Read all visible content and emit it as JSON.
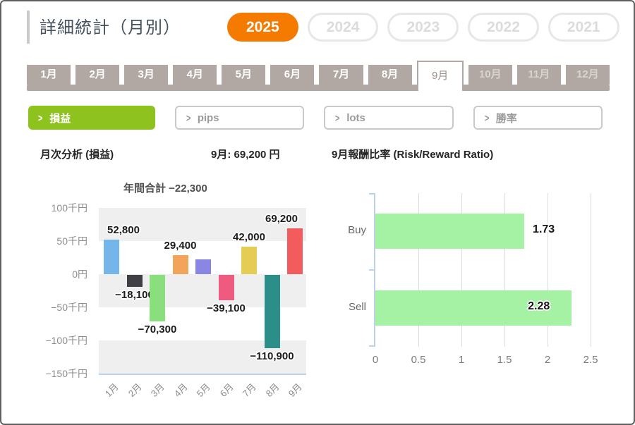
{
  "page": {
    "title": "詳細統計（月別）"
  },
  "year_tabs": {
    "items": [
      {
        "label": "2025",
        "active": true
      },
      {
        "label": "2024",
        "active": false
      },
      {
        "label": "2023",
        "active": false
      },
      {
        "label": "2022",
        "active": false
      },
      {
        "label": "2021",
        "active": false
      }
    ]
  },
  "month_tabs": {
    "items": [
      {
        "label": "1月",
        "state": "past"
      },
      {
        "label": "2月",
        "state": "past"
      },
      {
        "label": "3月",
        "state": "past"
      },
      {
        "label": "4月",
        "state": "past"
      },
      {
        "label": "5月",
        "state": "past"
      },
      {
        "label": "6月",
        "state": "past"
      },
      {
        "label": "7月",
        "state": "past"
      },
      {
        "label": "8月",
        "state": "past"
      },
      {
        "label": "9月",
        "state": "active"
      },
      {
        "label": "10月",
        "state": "future"
      },
      {
        "label": "11月",
        "state": "future"
      },
      {
        "label": "12月",
        "state": "future"
      }
    ]
  },
  "filters": {
    "arrow": ">",
    "items": [
      {
        "label": "損益",
        "active": true
      },
      {
        "label": "pips",
        "active": false
      },
      {
        "label": "lots",
        "active": false
      },
      {
        "label": "勝率",
        "active": false
      }
    ]
  },
  "sections": {
    "left_title": "月次分析 (損益)",
    "month_total": "9月: 69,200 円",
    "right_title": "9月報酬比率 (Risk/Reward Ratio)"
  },
  "colors": {
    "accent_orange": "#f57a00",
    "active_filter_green": "#8ec21e",
    "tab_taupe": "#b1a8a3",
    "band_gray": "#efefef",
    "axis_blue": "#b9d5ec"
  },
  "chart_data": [
    {
      "type": "bar",
      "title": "年間合計 −22,300",
      "annual_total": -22300,
      "categories": [
        "1月",
        "2月",
        "3月",
        "4月",
        "5月",
        "6月",
        "7月",
        "8月",
        "9月"
      ],
      "values": [
        52800,
        -18100,
        -70300,
        29400,
        22700,
        -39100,
        42000,
        -110900,
        69200
      ],
      "value_labels": [
        "52,800",
        "−18,100",
        "−70,300",
        "29,400",
        "",
        "−39,100",
        "42,000",
        "−110,900",
        "69,200"
      ],
      "bar_colors": [
        "#74b5ea",
        "#3e4045",
        "#8ade7e",
        "#f2a45a",
        "#8a86e6",
        "#ef5b80",
        "#e4cc55",
        "#2b8e88",
        "#f25c5c"
      ],
      "yticks": [
        "100千円",
        "50千円",
        "0円",
        "−50千円",
        "−100千円",
        "−150千円"
      ],
      "ylim": [
        -150000,
        100000
      ],
      "ylabel": "",
      "xlabel": "",
      "grid": "alternating horizontal bands every 50千円"
    },
    {
      "type": "bar-horizontal",
      "title": "",
      "categories": [
        "Buy",
        "Sell"
      ],
      "values": [
        1.73,
        2.28
      ],
      "value_labels": [
        "1.73",
        "2.28"
      ],
      "bar_color": "#a6f2a4",
      "xticks": [
        "0",
        "0.5",
        "1",
        "1.5",
        "2",
        "2.5"
      ],
      "xlim": [
        0,
        2.5
      ],
      "grid": "vertical gridlines every 0.5"
    }
  ]
}
